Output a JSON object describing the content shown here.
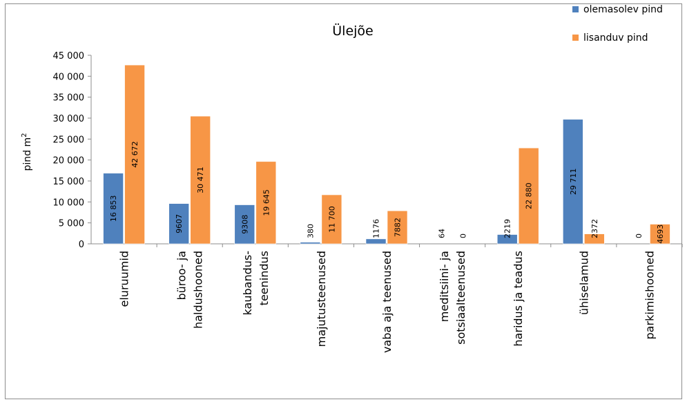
{
  "chart_data": {
    "type": "bar",
    "title": "Ülejõe",
    "ylabel": "pind m",
    "ylabel_sup": "2",
    "ylim": [
      0,
      45000
    ],
    "yticks": [
      0,
      5000,
      10000,
      15000,
      20000,
      25000,
      30000,
      35000,
      40000,
      45000
    ],
    "ytick_labels": [
      "0",
      "5 000",
      "10 000",
      "15 000",
      "20 000",
      "25 000",
      "30 000",
      "35 000",
      "40 000",
      "45 000"
    ],
    "grid": false,
    "legend_position": "top-right",
    "categories": [
      [
        "eluruumid"
      ],
      [
        "büroo- ja",
        "haldushooned"
      ],
      [
        "kaubandus-",
        "teenindus"
      ],
      [
        "majutusteenused"
      ],
      [
        "vaba aja teenused"
      ],
      [
        "meditsiini- ja",
        "sotsiaalteenused"
      ],
      [
        "haridus ja teadus"
      ],
      [
        "ühiselamud"
      ],
      [
        "parkimishooned"
      ]
    ],
    "series": [
      {
        "name": "olemasolev pind",
        "color": "#4f81bd",
        "values": [
          16853,
          9607,
          9308,
          380,
          1176,
          64,
          2219,
          29711,
          0
        ],
        "labels": [
          "16 853",
          "9607",
          "9308",
          "380",
          "1176",
          "64",
          "2219",
          "29 711",
          "0"
        ]
      },
      {
        "name": "lisanduv pind",
        "color": "#f79646",
        "values": [
          42672,
          30471,
          19645,
          11700,
          7882,
          0,
          22880,
          2372,
          4693
        ],
        "labels": [
          "42 672",
          "30 471",
          "19 645",
          "11 700",
          "7882",
          "0",
          "22 880",
          "2372",
          "4693"
        ]
      }
    ]
  }
}
